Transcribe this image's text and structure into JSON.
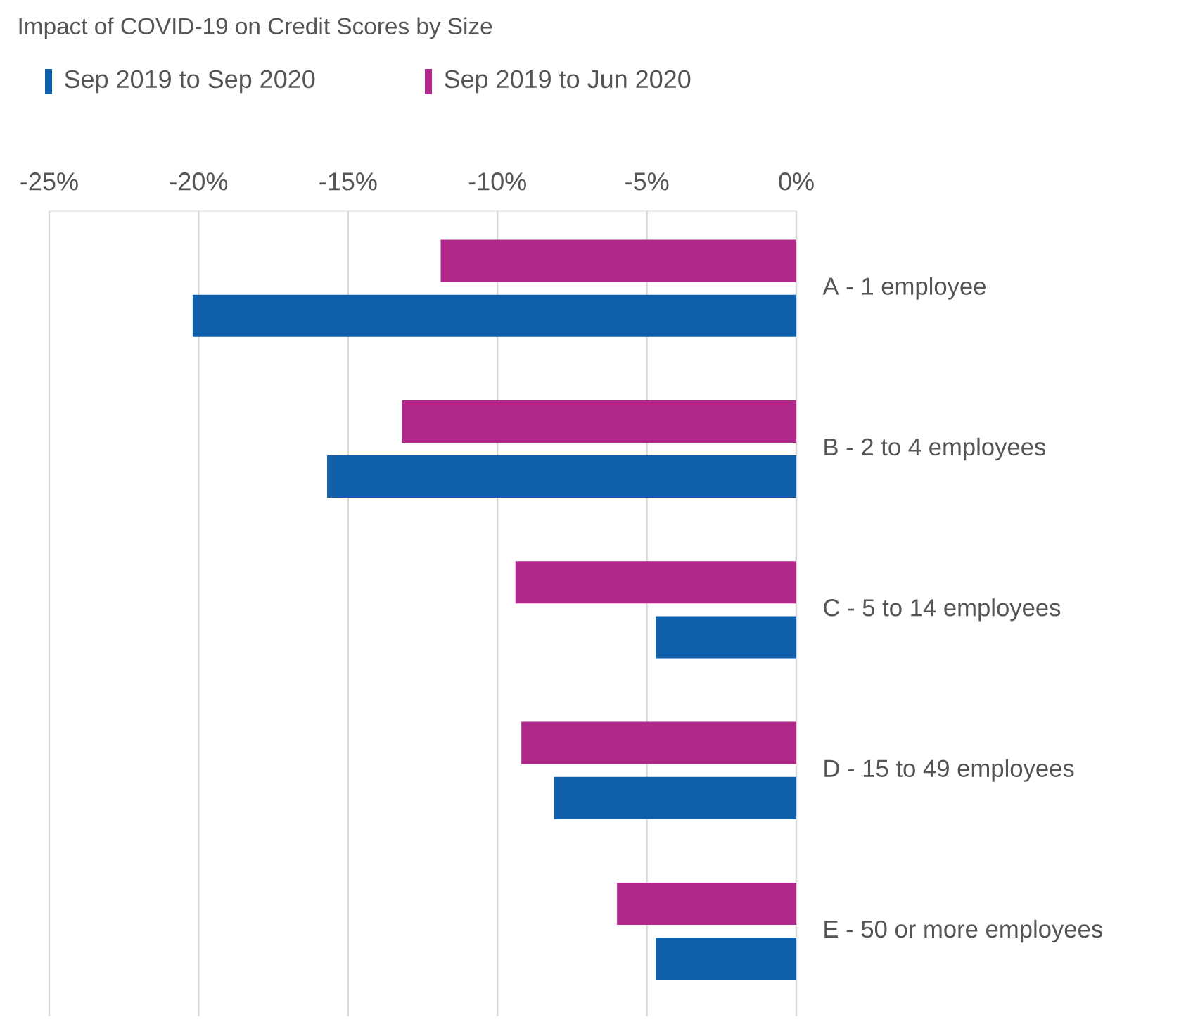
{
  "chart_data": {
    "type": "bar",
    "orientation": "horizontal",
    "title": "Impact of COVID-19 on Credit Scores by Size",
    "categories": [
      "A - 1 employee",
      "B - 2 to 4 employees",
      "C - 5 to 14 employees",
      "D - 15 to 49 employees",
      "E - 50 or more employees"
    ],
    "series": [
      {
        "name": "Sep 2019 to Sep 2020",
        "color": "#0f5fab",
        "values": [
          -20.2,
          -15.7,
          -4.7,
          -8.1,
          -4.7
        ]
      },
      {
        "name": "Sep 2019 to Jun 2020",
        "color": "#b0288a",
        "values": [
          -11.9,
          -13.2,
          -9.4,
          -9.2,
          -6.0
        ]
      }
    ],
    "xlim": [
      -25,
      0
    ],
    "xticks": [
      {
        "value": -25,
        "label": "-25%"
      },
      {
        "value": -20,
        "label": "-20%"
      },
      {
        "value": -15,
        "label": "-15%"
      },
      {
        "value": -10,
        "label": "-10%"
      },
      {
        "value": -5,
        "label": "-5%"
      },
      {
        "value": 0,
        "label": "0%"
      }
    ],
    "grid": "x",
    "legend": "top left"
  }
}
